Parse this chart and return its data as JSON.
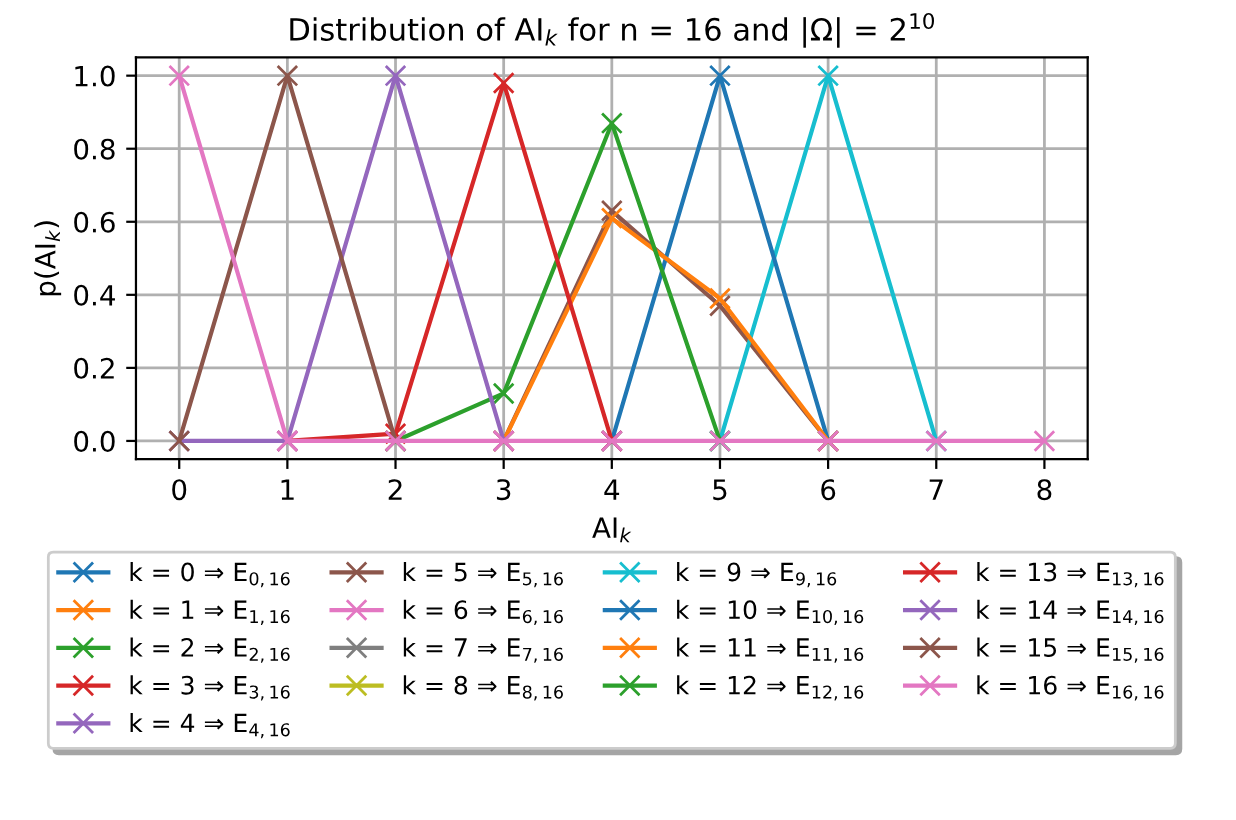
{
  "chart_data": {
    "type": "line",
    "title": "Distribution of AI$_{k}$ for n = 16 and |Ω| = 2$^{10}$",
    "xlabel": "AI$_{k}$",
    "ylabel": "p(AI$_{k}$)",
    "x": [
      0,
      1,
      2,
      3,
      4,
      5,
      6,
      7,
      8
    ],
    "xlim": [
      -0.4,
      8.4
    ],
    "ylim": [
      -0.05,
      1.05
    ],
    "xticks": [
      0,
      1,
      2,
      3,
      4,
      5,
      6,
      7,
      8
    ],
    "yticks": [
      {
        "value": 0,
        "label": "0.0"
      },
      0.2,
      0.4,
      0.6,
      0.8,
      {
        "value": 1,
        "label": "1.0"
      }
    ],
    "grid": true,
    "legend": "bottom",
    "marker": "cross",
    "line_style": "solid",
    "series": [
      {
        "name": "k = 0 ⇒ E$_{0,16}$",
        "color": "#1f77b4",
        "values": [
          null,
          null,
          null,
          null,
          null,
          null,
          null,
          null,
          null
        ]
      },
      {
        "name": "k = 1 ⇒ E$_{1,16}$",
        "color": "#ff7f0e",
        "values": [
          null,
          null,
          null,
          null,
          null,
          null,
          null,
          null,
          null
        ]
      },
      {
        "name": "k = 2 ⇒ E$_{2,16}$",
        "color": "#2ca02c",
        "values": [
          null,
          null,
          null,
          null,
          null,
          null,
          null,
          null,
          null
        ]
      },
      {
        "name": "k = 3 ⇒ E$_{3,16}$",
        "color": "#d62728",
        "values": [
          null,
          null,
          null,
          null,
          null,
          null,
          null,
          null,
          null
        ]
      },
      {
        "name": "k = 4 ⇒ E$_{4,16}$",
        "color": "#9467bd",
        "values": [
          null,
          null,
          null,
          null,
          null,
          null,
          null,
          null,
          null
        ]
      },
      {
        "name": "k = 5 ⇒ E$_{5,16}$",
        "color": "#8c564b",
        "values": [
          null,
          null,
          null,
          0,
          0.63,
          0.37,
          0,
          null,
          null
        ]
      },
      {
        "name": "k = 6 ⇒ E$_{6,16}$",
        "color": "#e377c2",
        "values": [
          null,
          null,
          null,
          null,
          null,
          null,
          null,
          null,
          null
        ]
      },
      {
        "name": "k = 7 ⇒ E$_{7,16}$",
        "color": "#7f7f7f",
        "values": [
          null,
          null,
          null,
          null,
          null,
          null,
          null,
          null,
          null
        ]
      },
      {
        "name": "k = 8 ⇒ E$_{8,16}$",
        "color": "#bcbd22",
        "values": [
          null,
          null,
          null,
          null,
          null,
          null,
          null,
          null,
          null
        ]
      },
      {
        "name": "k = 9 ⇒ E$_{9,16}$",
        "color": "#17becf",
        "values": [
          null,
          null,
          null,
          null,
          null,
          0,
          1,
          0,
          null
        ]
      },
      {
        "name": "k = 10 ⇒ E$_{10,16}$",
        "color": "#1f77b4",
        "values": [
          null,
          null,
          null,
          null,
          0,
          1,
          0,
          null,
          null
        ]
      },
      {
        "name": "k = 11 ⇒ E$_{11,16}$",
        "color": "#ff7f0e",
        "values": [
          null,
          null,
          null,
          0,
          0.61,
          0.39,
          0,
          null,
          null
        ]
      },
      {
        "name": "k = 12 ⇒ E$_{12,16}$",
        "color": "#2ca02c",
        "values": [
          null,
          null,
          0,
          0.13,
          0.87,
          0,
          null,
          null,
          null
        ]
      },
      {
        "name": "k = 13 ⇒ E$_{13,16}$",
        "color": "#d62728",
        "values": [
          null,
          0,
          0.02,
          0.98,
          0,
          null,
          null,
          null,
          null
        ]
      },
      {
        "name": "k = 14 ⇒ E$_{14,16}$",
        "color": "#9467bd",
        "values": [
          0,
          0,
          1,
          0,
          null,
          null,
          null,
          null,
          null
        ]
      },
      {
        "name": "k = 15 ⇒ E$_{15,16}$",
        "color": "#8c564b",
        "values": [
          0,
          1,
          0,
          null,
          null,
          null,
          null,
          null,
          null
        ]
      },
      {
        "name": "k = 16 ⇒ E$_{16,16}$",
        "color": "#e377c2",
        "values": [
          1,
          0,
          0,
          0,
          0,
          0,
          0,
          0,
          0
        ]
      }
    ]
  }
}
